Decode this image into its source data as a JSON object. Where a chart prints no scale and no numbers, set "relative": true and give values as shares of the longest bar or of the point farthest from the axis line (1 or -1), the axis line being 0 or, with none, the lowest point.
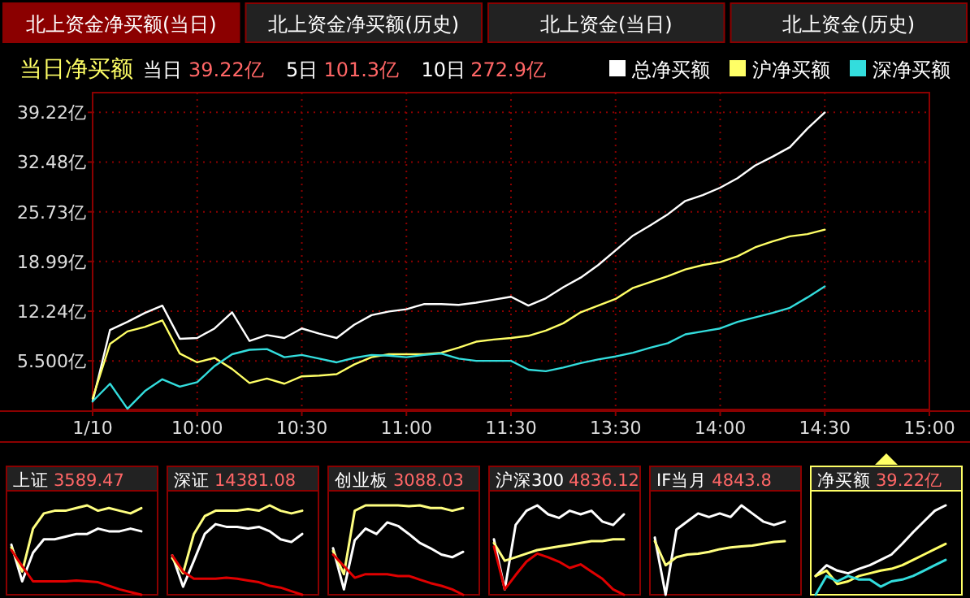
{
  "chart_data": [
    {
      "type": "line",
      "title": "当日净买额",
      "annotations": [
        "北上资金净买额(当日)",
        "北上资金净买额(历史)",
        "北上资金(当日)",
        "北上资金(历史)",
        "当日",
        "39.22亿",
        "5日",
        "101.3亿",
        "10日",
        "272.9亿"
      ],
      "categories": [
        "1/10",
        null,
        null,
        null,
        null,
        null,
        "10:00",
        null,
        null,
        null,
        null,
        null,
        "10:30",
        null,
        null,
        null,
        null,
        null,
        "11:00",
        null,
        null,
        null,
        null,
        null,
        "11:30",
        null,
        null,
        null,
        null,
        null,
        "13:30",
        null,
        null,
        null,
        null,
        null,
        "14:00",
        null,
        null,
        null,
        null,
        null,
        "14:30",
        null,
        null,
        null,
        null,
        null,
        "15:00"
      ],
      "ylim": [
        -1.1,
        41.9
      ],
      "yticks": [
        {
          "value": 5.5,
          "label": "5.500亿"
        },
        {
          "value": 12.24,
          "label": "12.24亿"
        },
        {
          "value": 18.99,
          "label": "18.99亿"
        },
        {
          "value": 25.73,
          "label": "25.73亿"
        },
        {
          "value": 32.48,
          "label": "32.48亿"
        },
        {
          "value": 39.22,
          "label": "39.22亿"
        }
      ],
      "grid": true,
      "legend": "top right",
      "series": [
        {
          "name": "总净买额",
          "color": "#ffffff",
          "values": [
            0,
            9.7,
            10.8,
            12.0,
            13.0,
            8.5,
            8.6,
            9.9,
            12.1,
            8.2,
            9.0,
            8.6,
            9.9,
            9.2,
            8.6,
            10.4,
            11.7,
            12.2,
            12.5,
            13.2,
            13.2,
            13.1,
            13.4,
            13.8,
            14.2,
            13.0,
            14.0,
            15.5,
            16.8,
            18.5,
            20.5,
            22.5,
            23.9,
            25.4,
            27.2,
            28.0,
            29.0,
            30.3,
            32.0,
            33.2,
            34.5,
            37.0,
            39.2,
            null,
            null,
            null,
            null,
            null,
            null
          ]
        },
        {
          "name": "沪净买额",
          "color": "#ffff66",
          "values": [
            0.4,
            7.8,
            9.5,
            10.1,
            11.0,
            6.5,
            5.3,
            5.9,
            4.4,
            2.5,
            3.1,
            2.4,
            3.4,
            3.5,
            3.7,
            5.0,
            6.0,
            6.4,
            6.4,
            6.4,
            6.6,
            7.3,
            8.1,
            8.4,
            8.6,
            8.9,
            9.6,
            10.6,
            12.1,
            13.0,
            13.9,
            15.4,
            16.2,
            17.0,
            17.9,
            18.5,
            18.9,
            19.7,
            20.9,
            21.7,
            22.4,
            22.7,
            23.3,
            null,
            null,
            null,
            null,
            null,
            null
          ]
        },
        {
          "name": "深净买额",
          "color": "#33dddd",
          "values": [
            0,
            2.4,
            -1.0,
            1.4,
            3.0,
            2.0,
            2.6,
            4.8,
            6.4,
            7.0,
            7.1,
            6.0,
            6.3,
            5.8,
            5.3,
            5.9,
            6.3,
            6.2,
            6.0,
            6.3,
            6.5,
            5.8,
            5.5,
            5.5,
            5.5,
            4.3,
            4.1,
            4.6,
            5.2,
            5.7,
            6.1,
            6.6,
            7.3,
            7.9,
            9.1,
            9.5,
            9.9,
            10.8,
            11.4,
            12.0,
            12.7,
            14.1,
            15.6,
            null,
            null,
            null,
            null,
            null,
            null
          ]
        }
      ]
    },
    {
      "type": "line",
      "title": "上证",
      "subtitle": "3589.47",
      "relative": true,
      "categories": [
        null,
        null,
        null,
        null,
        null,
        null,
        null,
        null,
        null,
        null,
        null,
        null,
        null
      ],
      "series": [
        {
          "color": "#ffffff",
          "values": [
            0.56,
            0.15,
            0.47,
            0.62,
            0.62,
            0.65,
            0.68,
            0.68,
            0.74,
            0.71,
            0.71,
            0.74,
            0.71
          ]
        },
        {
          "color": "#ffff80",
          "values": [
            0.53,
            0.26,
            0.74,
            0.91,
            0.94,
            0.94,
            0.97,
            1,
            0.94,
            0.97,
            0.94,
            0.91,
            0.97
          ]
        },
        {
          "color": "#e00000",
          "values": [
            0.5,
            0.32,
            0.15,
            0.15,
            0.15,
            0.15,
            0.16,
            0.15,
            0.14,
            0.1,
            0.06,
            0.03,
            0
          ]
        }
      ]
    },
    {
      "type": "line",
      "title": "深证",
      "subtitle": "14381.08",
      "relative": true,
      "categories": [
        null,
        null,
        null,
        null,
        null,
        null,
        null,
        null,
        null,
        null,
        null,
        null,
        null
      ],
      "series": [
        {
          "color": "#ffffff",
          "values": [
            0.44,
            0.09,
            0.38,
            0.68,
            0.79,
            0.76,
            0.76,
            0.74,
            0.76,
            0.71,
            0.62,
            0.59,
            0.68
          ]
        },
        {
          "color": "#ffff80",
          "values": [
            0.41,
            0.24,
            0.68,
            0.88,
            0.94,
            0.94,
            0.94,
            0.96,
            0.94,
            1,
            0.94,
            0.91,
            0.94
          ]
        },
        {
          "color": "#e00000",
          "values": [
            0.44,
            0.26,
            0.18,
            0.18,
            0.18,
            0.19,
            0.18,
            0.16,
            0.14,
            0.1,
            0.08,
            0.04,
            0
          ]
        }
      ]
    },
    {
      "type": "line",
      "title": "创业板",
      "subtitle": "3088.03",
      "relative": true,
      "categories": [
        null,
        null,
        null,
        null,
        null,
        null,
        null,
        null,
        null,
        null,
        null,
        null,
        null
      ],
      "series": [
        {
          "color": "#ffffff",
          "values": [
            0.52,
            0.06,
            0.61,
            0.74,
            0.68,
            0.81,
            0.77,
            0.68,
            0.58,
            0.52,
            0.45,
            0.42,
            0.48
          ]
        },
        {
          "color": "#ffff80",
          "values": [
            0.49,
            0.23,
            0.94,
            1,
            1,
            1,
            1,
            0.99,
            1,
            0.97,
            0.97,
            0.94,
            0.97
          ]
        },
        {
          "color": "#e00000",
          "values": [
            0.45,
            0.32,
            0.19,
            0.23,
            0.23,
            0.23,
            0.21,
            0.21,
            0.17,
            0.13,
            0.1,
            0.06,
            0
          ]
        }
      ]
    },
    {
      "type": "line",
      "title": "沪深300",
      "subtitle": "4836.12",
      "relative": true,
      "categories": [
        null,
        null,
        null,
        null,
        null,
        null,
        null,
        null,
        null,
        null,
        null,
        null,
        null
      ],
      "series": [
        {
          "color": "#ffffff",
          "values": [
            0.62,
            0.06,
            0.78,
            0.94,
            1,
            0.9,
            0.86,
            0.94,
            0.9,
            0.94,
            0.82,
            0.78,
            0.9
          ]
        },
        {
          "color": "#ffff80",
          "values": [
            0.58,
            0.38,
            0.42,
            0.46,
            0.5,
            0.52,
            0.54,
            0.56,
            0.58,
            0.6,
            0.6,
            0.62,
            0.62
          ]
        },
        {
          "color": "#e00000",
          "values": [
            0.54,
            0.06,
            0.22,
            0.37,
            0.46,
            0.42,
            0.37,
            0.3,
            0.34,
            0.26,
            0.18,
            0.06,
            0
          ]
        }
      ]
    },
    {
      "type": "line",
      "title": "IF当月",
      "subtitle": "4843.8",
      "relative": true,
      "categories": [
        null,
        null,
        null,
        null,
        null,
        null,
        null,
        null,
        null,
        null,
        null,
        null,
        null
      ],
      "series": [
        {
          "color": "#ffffff",
          "values": [
            0.64,
            0,
            0.73,
            0.82,
            0.91,
            0.87,
            0.91,
            0.87,
            1,
            0.91,
            0.82,
            0.78,
            0.82
          ]
        },
        {
          "color": "#ffff80",
          "values": [
            0.6,
            0.33,
            0.42,
            0.45,
            0.46,
            0.48,
            0.51,
            0.53,
            0.54,
            0.55,
            0.57,
            0.59,
            0.6
          ]
        }
      ]
    },
    {
      "type": "line",
      "title": "净买额",
      "subtitle": "39.22亿",
      "relative": true,
      "categories": [
        null,
        null,
        null,
        null,
        null,
        null,
        null,
        null,
        null,
        null,
        null,
        null,
        null
      ],
      "series": [
        {
          "color": "#ffffff",
          "values": [
            0.21,
            0.33,
            0.27,
            0.24,
            0.29,
            0.33,
            0.39,
            0.45,
            0.57,
            0.7,
            0.82,
            0.94,
            1
          ]
        },
        {
          "color": "#ffff66",
          "values": [
            0.21,
            0.27,
            0.12,
            0.15,
            0.21,
            0.24,
            0.27,
            0.29,
            0.33,
            0.39,
            0.45,
            0.51,
            0.57
          ]
        },
        {
          "color": "#33dddd",
          "values": [
            0,
            0.21,
            0.15,
            0.21,
            0.17,
            0.17,
            0.09,
            0.15,
            0.17,
            0.21,
            0.27,
            0.33,
            0.39
          ]
        }
      ]
    }
  ]
}
